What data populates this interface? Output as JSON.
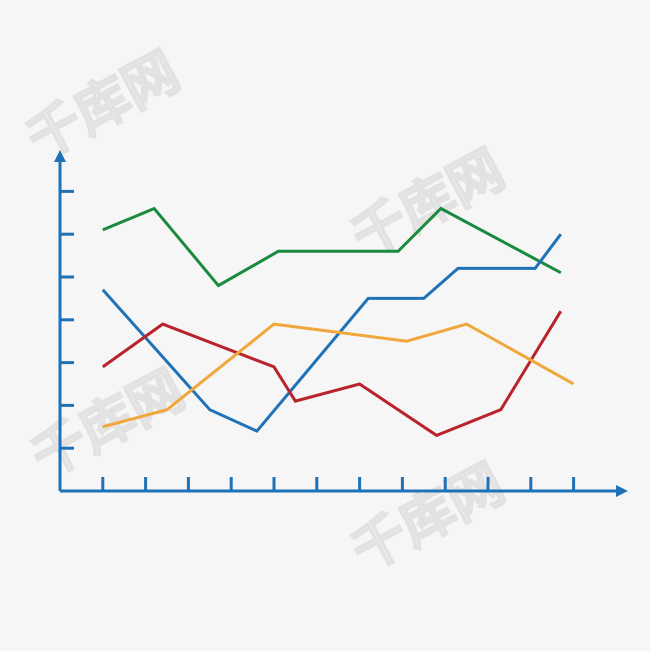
{
  "watermark": {
    "text": "千库网"
  },
  "chart_data": {
    "type": "line",
    "title": "",
    "xlabel": "",
    "ylabel": "",
    "grid": false,
    "x_ticks": 12,
    "y_ticks": 7,
    "series": [
      {
        "color": "#1a8a3e",
        "points": [
          [
            1.0,
            6.1
          ],
          [
            2.2,
            6.6
          ],
          [
            3.7,
            4.8
          ],
          [
            5.1,
            5.6
          ],
          [
            7.9,
            5.6
          ],
          [
            8.9,
            6.6
          ],
          [
            11.7,
            5.1
          ]
        ]
      },
      {
        "color": "#1f72b8",
        "points": [
          [
            1.0,
            4.7
          ],
          [
            3.5,
            1.9
          ],
          [
            4.6,
            1.4
          ],
          [
            7.2,
            4.5
          ],
          [
            8.5,
            4.5
          ],
          [
            9.3,
            5.2
          ],
          [
            11.1,
            5.2
          ],
          [
            11.7,
            6.0
          ]
        ]
      },
      {
        "color": "#b8232c",
        "points": [
          [
            1.0,
            2.9
          ],
          [
            2.4,
            3.9
          ],
          [
            5.0,
            2.9
          ],
          [
            5.5,
            2.1
          ],
          [
            7.0,
            2.5
          ],
          [
            8.8,
            1.3
          ],
          [
            10.3,
            1.9
          ],
          [
            11.7,
            4.2
          ]
        ]
      },
      {
        "color": "#f0a73b",
        "points": [
          [
            1.0,
            1.5
          ],
          [
            2.5,
            1.9
          ],
          [
            5.0,
            3.9
          ],
          [
            8.1,
            3.5
          ],
          [
            9.5,
            3.9
          ],
          [
            12.0,
            2.5
          ]
        ]
      }
    ]
  }
}
